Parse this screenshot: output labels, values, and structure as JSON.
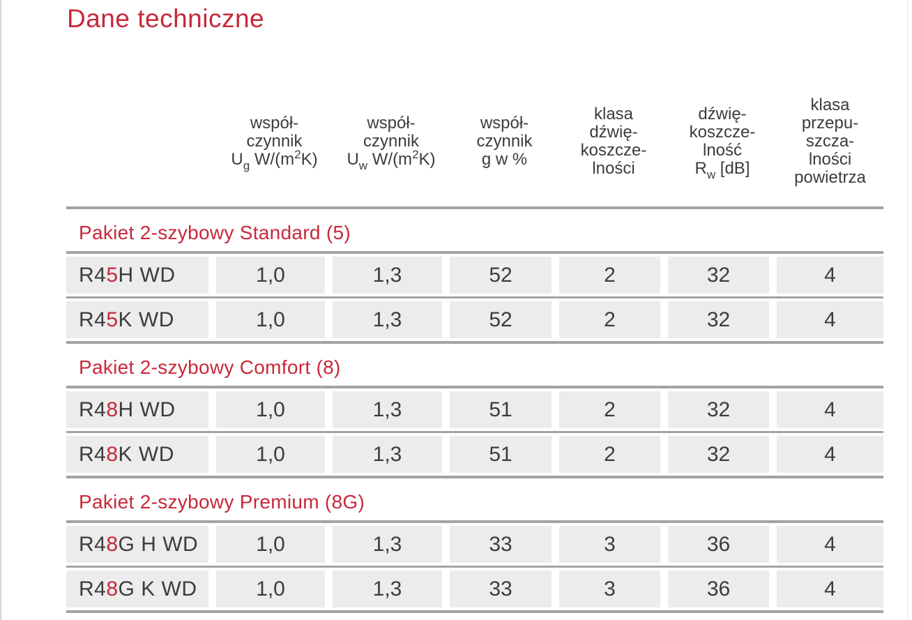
{
  "title": "Dane techniczne",
  "headers": {
    "col1": [
      "współ-",
      "czynnik",
      "U",
      "g",
      " W/(m",
      "2",
      "K)"
    ],
    "col2": [
      "współ-",
      "czynnik",
      "U",
      "w",
      " W/(m",
      "2",
      "K)"
    ],
    "col3": [
      "współ-",
      "czynnik",
      "g w %"
    ],
    "col4": [
      "klasa",
      "dźwię-",
      "koszcze-",
      "lności"
    ],
    "col5": [
      "dźwię-",
      "koszcze-",
      "lność",
      "R",
      "w",
      " [dB]"
    ],
    "col6": [
      "klasa",
      "przepu-",
      "szcza-",
      "lności",
      "powietrza"
    ]
  },
  "groups": [
    {
      "title": "Pakiet 2-szybowy Standard (5)",
      "rows": [
        {
          "prefix": "R4",
          "accent": "5",
          "suffix": " H WD",
          "ug": "1,0",
          "uw": "1,3",
          "g": "52",
          "klasa": "2",
          "rw": "32",
          "powietrze": "4"
        },
        {
          "prefix": "R4",
          "accent": "5",
          "suffix": " K WD",
          "ug": "1,0",
          "uw": "1,3",
          "g": "52",
          "klasa": "2",
          "rw": "32",
          "powietrze": "4"
        }
      ]
    },
    {
      "title": "Pakiet 2-szybowy Comfort (8)",
      "rows": [
        {
          "prefix": "R4",
          "accent": "8",
          "suffix": " H WD",
          "ug": "1,0",
          "uw": "1,3",
          "g": "51",
          "klasa": "2",
          "rw": "32",
          "powietrze": "4"
        },
        {
          "prefix": "R4",
          "accent": "8",
          "suffix": " K WD",
          "ug": "1,0",
          "uw": "1,3",
          "g": "51",
          "klasa": "2",
          "rw": "32",
          "powietrze": "4"
        }
      ]
    },
    {
      "title": "Pakiet 2-szybowy Premium (8G)",
      "rows": [
        {
          "prefix": "R4",
          "accent": "8",
          "suffix": "G H WD",
          "ug": "1,0",
          "uw": "1,3",
          "g": "33",
          "klasa": "3",
          "rw": "36",
          "powietrze": "4"
        },
        {
          "prefix": "R4",
          "accent": "8",
          "suffix": "G K WD",
          "ug": "1,0",
          "uw": "1,3",
          "g": "33",
          "klasa": "3",
          "rw": "36",
          "powietrze": "4"
        }
      ]
    }
  ],
  "colors": {
    "accent": "#c8283a",
    "text": "#3c3c3c",
    "cell_bg": "#ececec",
    "rule": "#a3a3a3"
  }
}
